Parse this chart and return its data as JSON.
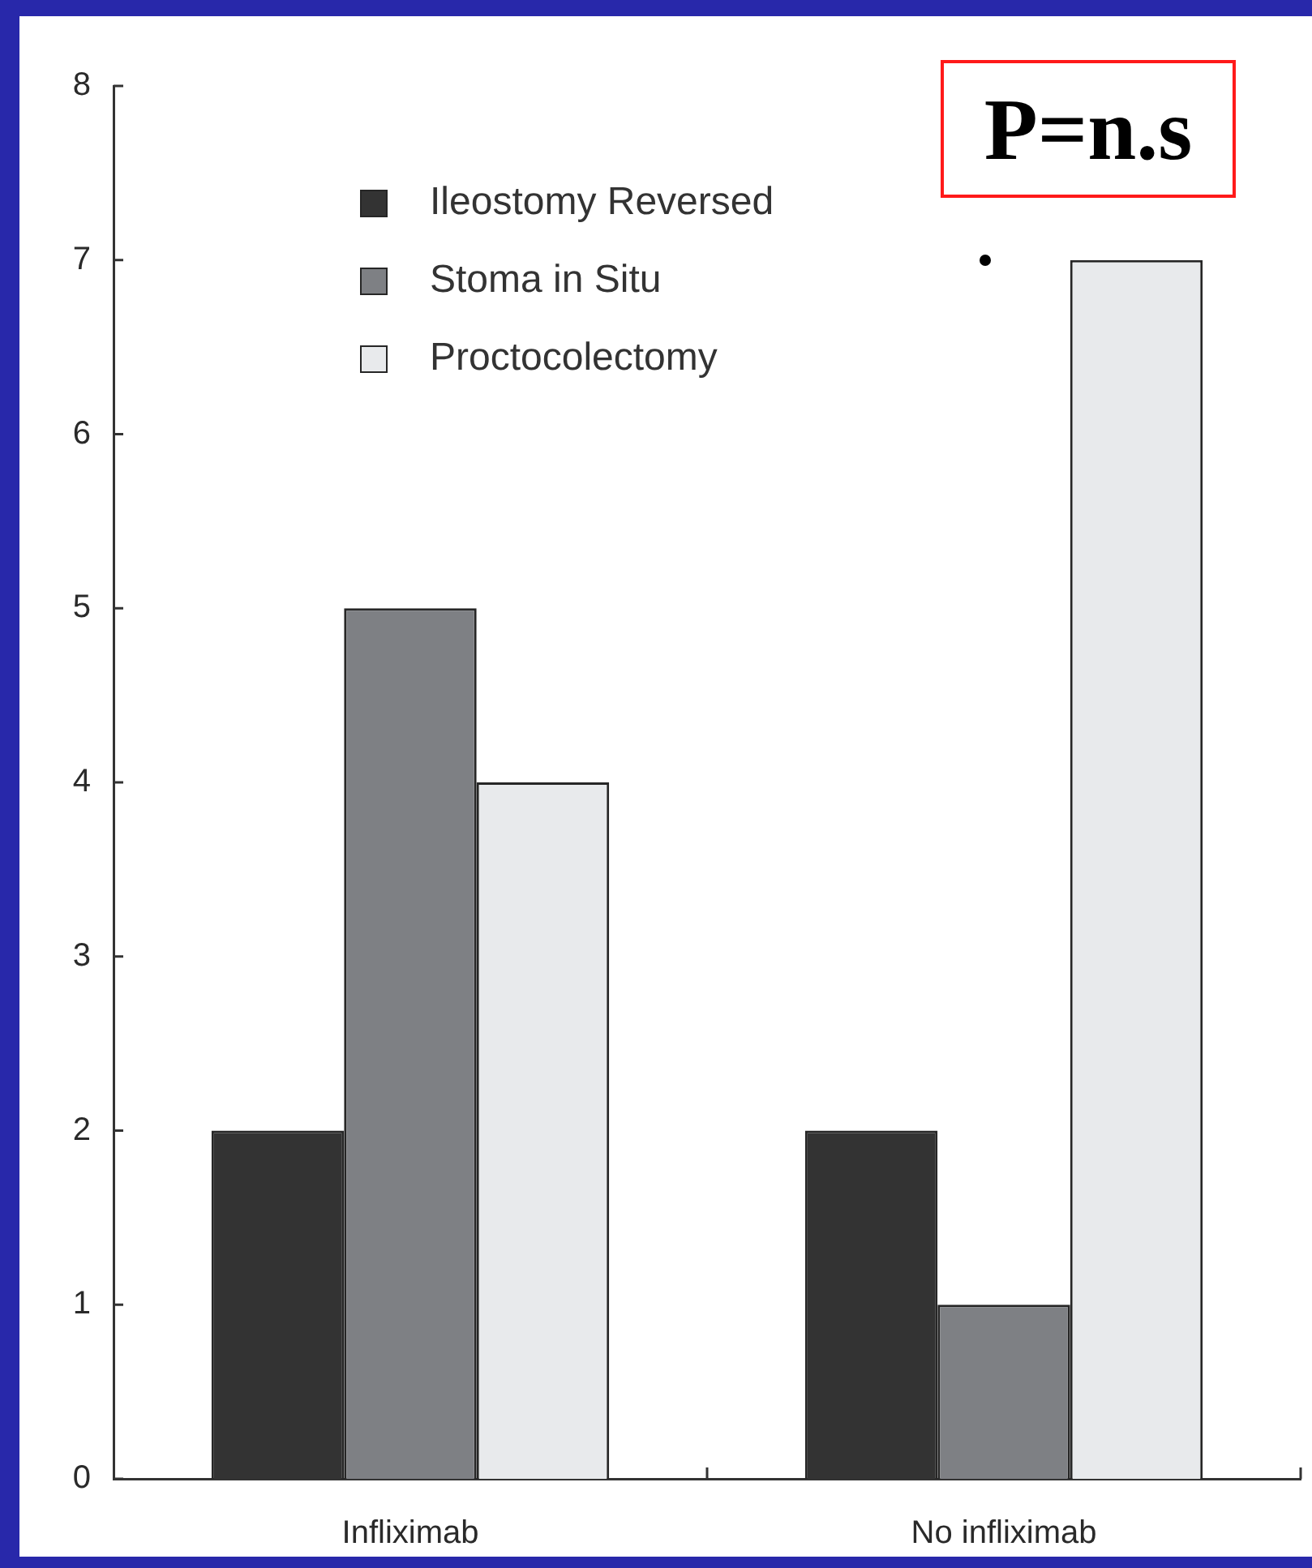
{
  "chart_data": {
    "type": "bar",
    "categories": [
      "Infliximab",
      "No infliximab"
    ],
    "series": [
      {
        "name": "Ileostomy Reversed",
        "color": "#333333",
        "values": [
          2,
          2
        ]
      },
      {
        "name": "Stoma in Situ",
        "color": "#7e8084",
        "values": [
          5,
          1
        ]
      },
      {
        "name": "Proctocolectomy",
        "color": "#e8eaec",
        "values": [
          4,
          7
        ]
      }
    ],
    "ylim": [
      0,
      8
    ],
    "yticks": [
      0,
      1,
      2,
      3,
      4,
      5,
      6,
      7,
      8
    ],
    "legend": "top left",
    "annotations": [
      "P=n.s"
    ]
  }
}
